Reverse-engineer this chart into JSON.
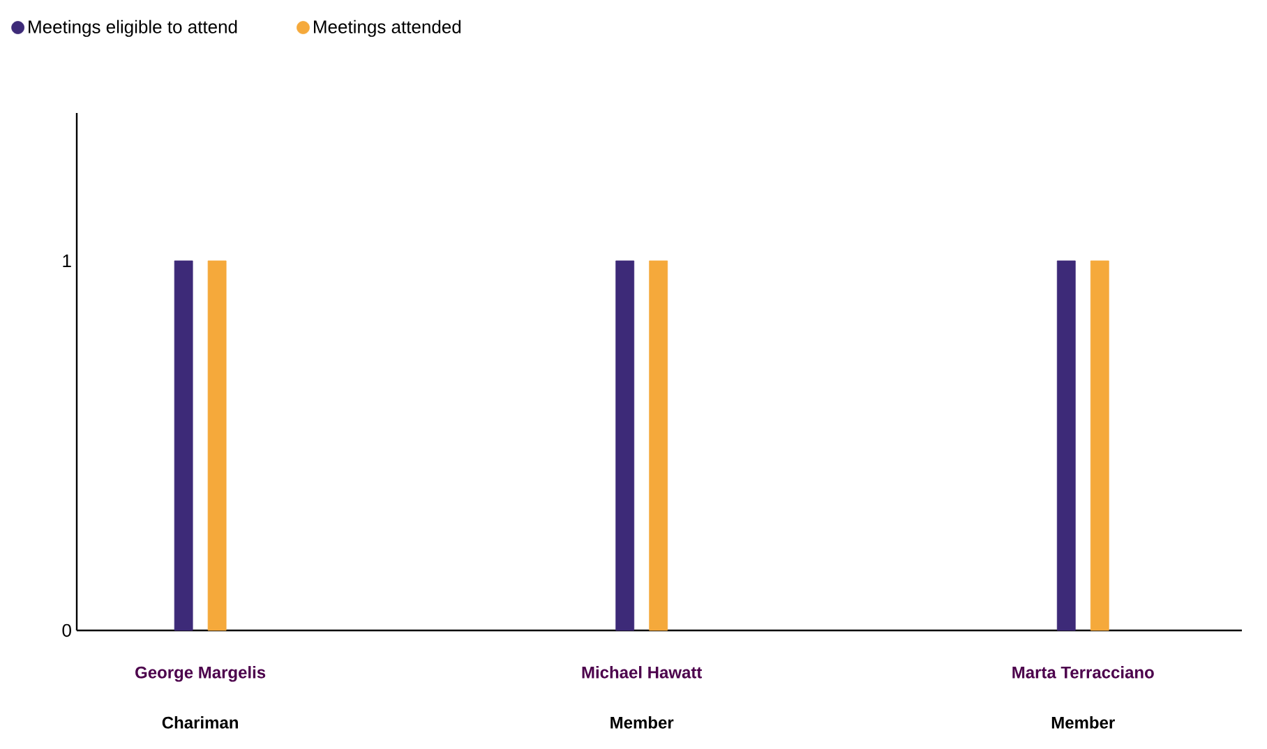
{
  "chart_data": {
    "type": "bar",
    "categories": [
      "George Margelis",
      "Michael Hawatt",
      "Marta Terracciano"
    ],
    "annotations": [
      "Chariman",
      "Member",
      "Member"
    ],
    "series": [
      {
        "name": "Meetings eligible to attend",
        "color": "#3d2a78",
        "values": [
          1,
          1,
          1
        ]
      },
      {
        "name": "Meetings attended",
        "color": "#f5a93b",
        "values": [
          1,
          1,
          1
        ]
      }
    ],
    "ylim": [
      0,
      1.4
    ],
    "yticks": [
      0,
      1
    ],
    "legend": "top left",
    "grid": false
  }
}
